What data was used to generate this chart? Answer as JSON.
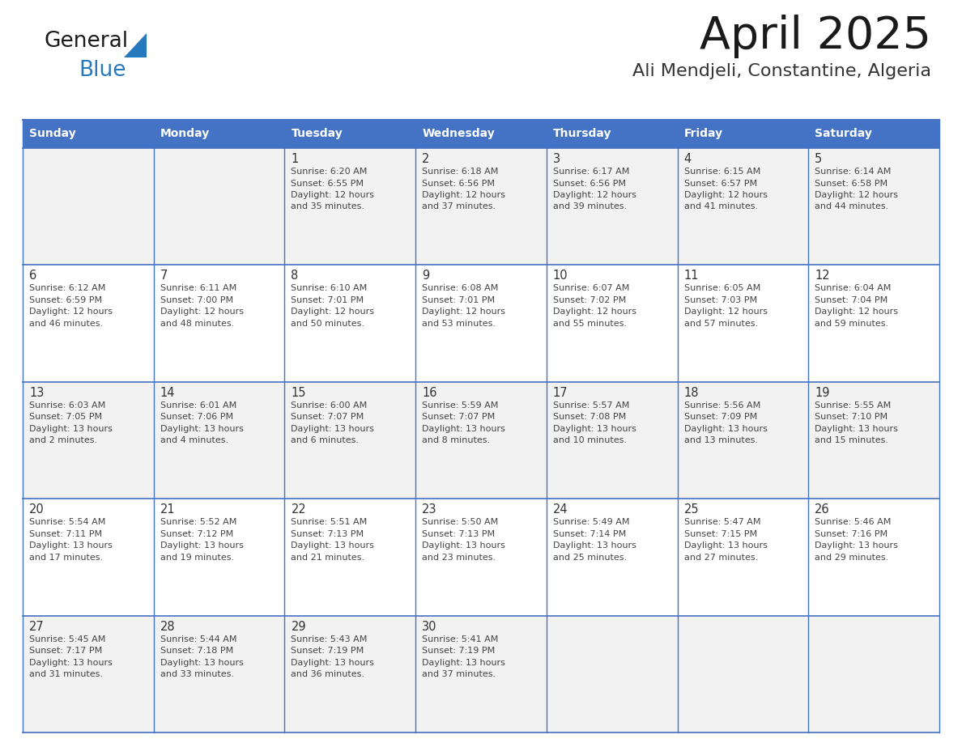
{
  "title": "April 2025",
  "subtitle": "Ali Mendjeli, Constantine, Algeria",
  "days_of_week": [
    "Sunday",
    "Monday",
    "Tuesday",
    "Wednesday",
    "Thursday",
    "Friday",
    "Saturday"
  ],
  "header_bg": "#4472C4",
  "header_text": "#FFFFFF",
  "cell_bg_even": "#F2F2F2",
  "cell_bg_odd": "#FFFFFF",
  "border_color": "#4472C4",
  "day_num_color": "#333333",
  "text_color": "#444444",
  "title_color": "#1a1a1a",
  "subtitle_color": "#333333",
  "generalblue_black": "#1a1a1a",
  "generalblue_blue": "#2779BD",
  "weeks": [
    {
      "days": [
        {
          "date": "",
          "sunrise": "",
          "sunset": "",
          "daylight": ""
        },
        {
          "date": "",
          "sunrise": "",
          "sunset": "",
          "daylight": ""
        },
        {
          "date": "1",
          "sunrise": "Sunrise: 6:20 AM",
          "sunset": "Sunset: 6:55 PM",
          "daylight": "Daylight: 12 hours\nand 35 minutes."
        },
        {
          "date": "2",
          "sunrise": "Sunrise: 6:18 AM",
          "sunset": "Sunset: 6:56 PM",
          "daylight": "Daylight: 12 hours\nand 37 minutes."
        },
        {
          "date": "3",
          "sunrise": "Sunrise: 6:17 AM",
          "sunset": "Sunset: 6:56 PM",
          "daylight": "Daylight: 12 hours\nand 39 minutes."
        },
        {
          "date": "4",
          "sunrise": "Sunrise: 6:15 AM",
          "sunset": "Sunset: 6:57 PM",
          "daylight": "Daylight: 12 hours\nand 41 minutes."
        },
        {
          "date": "5",
          "sunrise": "Sunrise: 6:14 AM",
          "sunset": "Sunset: 6:58 PM",
          "daylight": "Daylight: 12 hours\nand 44 minutes."
        }
      ]
    },
    {
      "days": [
        {
          "date": "6",
          "sunrise": "Sunrise: 6:12 AM",
          "sunset": "Sunset: 6:59 PM",
          "daylight": "Daylight: 12 hours\nand 46 minutes."
        },
        {
          "date": "7",
          "sunrise": "Sunrise: 6:11 AM",
          "sunset": "Sunset: 7:00 PM",
          "daylight": "Daylight: 12 hours\nand 48 minutes."
        },
        {
          "date": "8",
          "sunrise": "Sunrise: 6:10 AM",
          "sunset": "Sunset: 7:01 PM",
          "daylight": "Daylight: 12 hours\nand 50 minutes."
        },
        {
          "date": "9",
          "sunrise": "Sunrise: 6:08 AM",
          "sunset": "Sunset: 7:01 PM",
          "daylight": "Daylight: 12 hours\nand 53 minutes."
        },
        {
          "date": "10",
          "sunrise": "Sunrise: 6:07 AM",
          "sunset": "Sunset: 7:02 PM",
          "daylight": "Daylight: 12 hours\nand 55 minutes."
        },
        {
          "date": "11",
          "sunrise": "Sunrise: 6:05 AM",
          "sunset": "Sunset: 7:03 PM",
          "daylight": "Daylight: 12 hours\nand 57 minutes."
        },
        {
          "date": "12",
          "sunrise": "Sunrise: 6:04 AM",
          "sunset": "Sunset: 7:04 PM",
          "daylight": "Daylight: 12 hours\nand 59 minutes."
        }
      ]
    },
    {
      "days": [
        {
          "date": "13",
          "sunrise": "Sunrise: 6:03 AM",
          "sunset": "Sunset: 7:05 PM",
          "daylight": "Daylight: 13 hours\nand 2 minutes."
        },
        {
          "date": "14",
          "sunrise": "Sunrise: 6:01 AM",
          "sunset": "Sunset: 7:06 PM",
          "daylight": "Daylight: 13 hours\nand 4 minutes."
        },
        {
          "date": "15",
          "sunrise": "Sunrise: 6:00 AM",
          "sunset": "Sunset: 7:07 PM",
          "daylight": "Daylight: 13 hours\nand 6 minutes."
        },
        {
          "date": "16",
          "sunrise": "Sunrise: 5:59 AM",
          "sunset": "Sunset: 7:07 PM",
          "daylight": "Daylight: 13 hours\nand 8 minutes."
        },
        {
          "date": "17",
          "sunrise": "Sunrise: 5:57 AM",
          "sunset": "Sunset: 7:08 PM",
          "daylight": "Daylight: 13 hours\nand 10 minutes."
        },
        {
          "date": "18",
          "sunrise": "Sunrise: 5:56 AM",
          "sunset": "Sunset: 7:09 PM",
          "daylight": "Daylight: 13 hours\nand 13 minutes."
        },
        {
          "date": "19",
          "sunrise": "Sunrise: 5:55 AM",
          "sunset": "Sunset: 7:10 PM",
          "daylight": "Daylight: 13 hours\nand 15 minutes."
        }
      ]
    },
    {
      "days": [
        {
          "date": "20",
          "sunrise": "Sunrise: 5:54 AM",
          "sunset": "Sunset: 7:11 PM",
          "daylight": "Daylight: 13 hours\nand 17 minutes."
        },
        {
          "date": "21",
          "sunrise": "Sunrise: 5:52 AM",
          "sunset": "Sunset: 7:12 PM",
          "daylight": "Daylight: 13 hours\nand 19 minutes."
        },
        {
          "date": "22",
          "sunrise": "Sunrise: 5:51 AM",
          "sunset": "Sunset: 7:13 PM",
          "daylight": "Daylight: 13 hours\nand 21 minutes."
        },
        {
          "date": "23",
          "sunrise": "Sunrise: 5:50 AM",
          "sunset": "Sunset: 7:13 PM",
          "daylight": "Daylight: 13 hours\nand 23 minutes."
        },
        {
          "date": "24",
          "sunrise": "Sunrise: 5:49 AM",
          "sunset": "Sunset: 7:14 PM",
          "daylight": "Daylight: 13 hours\nand 25 minutes."
        },
        {
          "date": "25",
          "sunrise": "Sunrise: 5:47 AM",
          "sunset": "Sunset: 7:15 PM",
          "daylight": "Daylight: 13 hours\nand 27 minutes."
        },
        {
          "date": "26",
          "sunrise": "Sunrise: 5:46 AM",
          "sunset": "Sunset: 7:16 PM",
          "daylight": "Daylight: 13 hours\nand 29 minutes."
        }
      ]
    },
    {
      "days": [
        {
          "date": "27",
          "sunrise": "Sunrise: 5:45 AM",
          "sunset": "Sunset: 7:17 PM",
          "daylight": "Daylight: 13 hours\nand 31 minutes."
        },
        {
          "date": "28",
          "sunrise": "Sunrise: 5:44 AM",
          "sunset": "Sunset: 7:18 PM",
          "daylight": "Daylight: 13 hours\nand 33 minutes."
        },
        {
          "date": "29",
          "sunrise": "Sunrise: 5:43 AM",
          "sunset": "Sunset: 7:19 PM",
          "daylight": "Daylight: 13 hours\nand 36 minutes."
        },
        {
          "date": "30",
          "sunrise": "Sunrise: 5:41 AM",
          "sunset": "Sunset: 7:19 PM",
          "daylight": "Daylight: 13 hours\nand 37 minutes."
        },
        {
          "date": "",
          "sunrise": "",
          "sunset": "",
          "daylight": ""
        },
        {
          "date": "",
          "sunrise": "",
          "sunset": "",
          "daylight": ""
        },
        {
          "date": "",
          "sunrise": "",
          "sunset": "",
          "daylight": ""
        }
      ]
    }
  ]
}
